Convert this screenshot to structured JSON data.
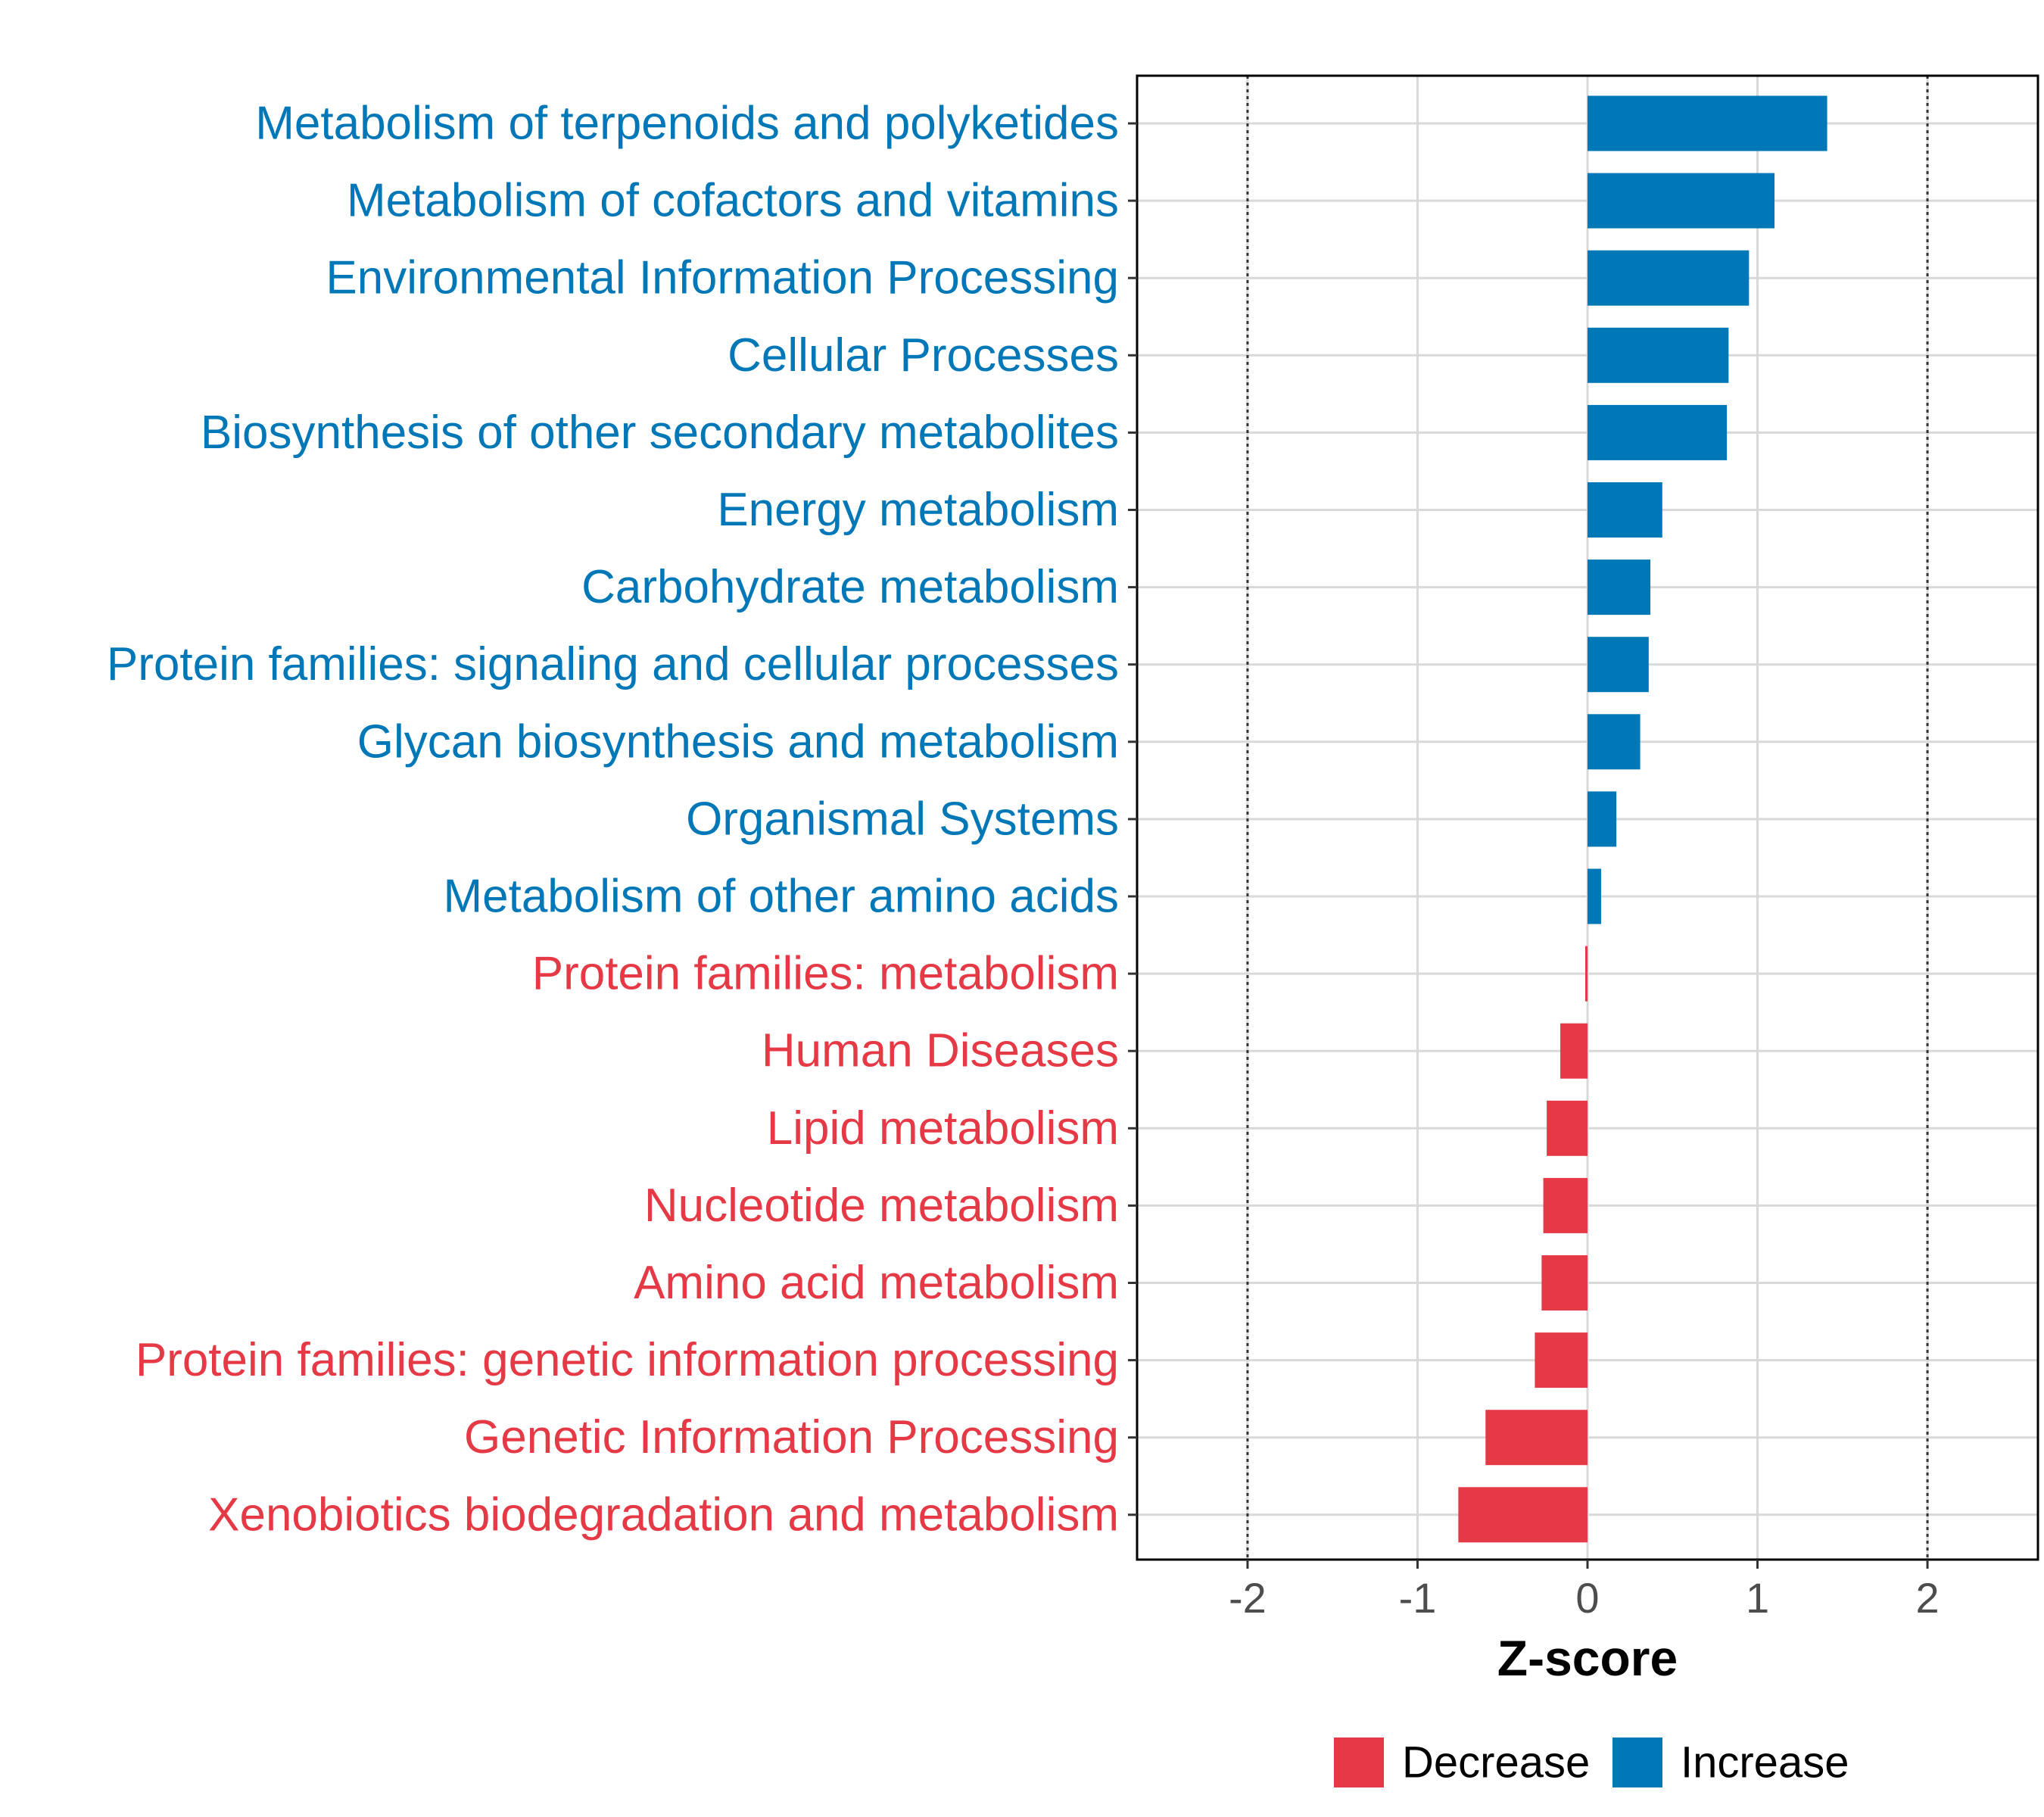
{
  "chart_data": {
    "type": "bar",
    "orientation": "horizontal",
    "xlabel": "Z-score",
    "ylabel": "",
    "xlim": [
      -2.65,
      2.65
    ],
    "xticks": [
      -2,
      -1,
      0,
      1,
      2
    ],
    "x_reference_lines": [
      -2,
      2
    ],
    "grid": true,
    "legend_position": "bottom",
    "colors": {
      "Decrease": "#e63946",
      "Increase": "#0077b6"
    },
    "legend": [
      {
        "label": "Decrease",
        "color": "#e63946"
      },
      {
        "label": "Increase",
        "color": "#0077b6"
      }
    ],
    "categories": [
      "Metabolism of terpenoids and polyketides",
      "Metabolism of cofactors and vitamins",
      "Environmental Information Processing",
      "Cellular Processes",
      "Biosynthesis of other secondary metabolites",
      "Energy metabolism",
      "Carbohydrate metabolism",
      "Protein families: signaling and cellular processes",
      "Glycan biosynthesis and metabolism",
      "Organismal Systems",
      "Metabolism of other amino acids",
      "Protein families: metabolism",
      "Human Diseases",
      "Lipid metabolism",
      "Nucleotide metabolism",
      "Amino acid metabolism",
      "Protein families: genetic information processing",
      "Genetic Information Processing",
      "Xenobiotics biodegradation and metabolism"
    ],
    "values": [
      1.41,
      1.1,
      0.95,
      0.83,
      0.82,
      0.44,
      0.37,
      0.36,
      0.31,
      0.17,
      0.08,
      -0.01,
      -0.16,
      -0.24,
      -0.26,
      -0.27,
      -0.31,
      -0.6,
      -0.76
    ],
    "groups": [
      "Increase",
      "Increase",
      "Increase",
      "Increase",
      "Increase",
      "Increase",
      "Increase",
      "Increase",
      "Increase",
      "Increase",
      "Increase",
      "Decrease",
      "Decrease",
      "Decrease",
      "Decrease",
      "Decrease",
      "Decrease",
      "Decrease",
      "Decrease"
    ]
  }
}
